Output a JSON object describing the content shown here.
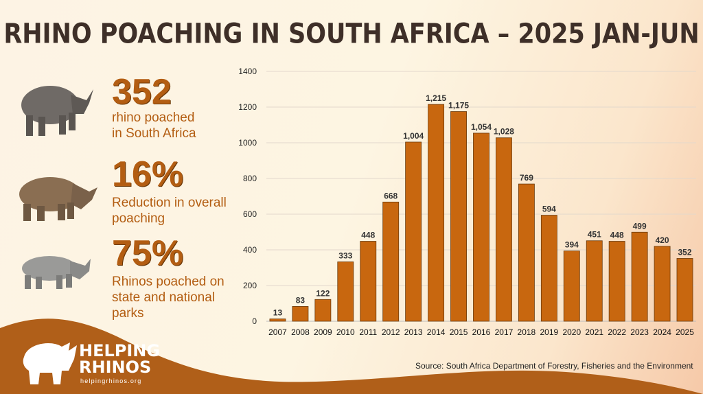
{
  "title": "RHINO POACHING IN SOUTH AFRICA – 2025 JAN-JUN",
  "stats": [
    {
      "value": "352",
      "desc_line1": "rhino poached",
      "desc_line2": "in South Africa",
      "icon": "black-rhino-icon"
    },
    {
      "value": "16%",
      "desc_line1": "Reduction in overall",
      "desc_line2": "poaching",
      "icon": "white-rhino-icon"
    },
    {
      "value": "75%",
      "desc_line1": "Rhinos poached on",
      "desc_line2": "state and national",
      "desc_line3": "parks",
      "icon": "grey-rhino-icon"
    }
  ],
  "logo": {
    "line1": "HELPING",
    "line2": "RHINOS",
    "url": "helpingrhinos.org"
  },
  "source": "Source: South Africa Department of Forestry, Fisheries and the Environment",
  "colors": {
    "bar": "#c8670f",
    "bar_outline": "#6a3a0c",
    "title": "#3e2f28",
    "accent": "#b35d12",
    "wave": "#b05f19"
  },
  "chart_data": {
    "type": "bar",
    "title": "",
    "xlabel": "",
    "ylabel": "",
    "ylim": [
      0,
      1400
    ],
    "yticks": [
      0,
      200,
      400,
      600,
      800,
      1000,
      1200,
      1400
    ],
    "grid": true,
    "categories": [
      "2007",
      "2008",
      "2009",
      "2010",
      "2011",
      "2012",
      "2013",
      "2014",
      "2015",
      "2016",
      "2017",
      "2018",
      "2019",
      "2020",
      "2021",
      "2022",
      "2023",
      "2024",
      "2025"
    ],
    "values": [
      13,
      83,
      122,
      333,
      448,
      668,
      1004,
      1215,
      1175,
      1054,
      1028,
      769,
      594,
      394,
      451,
      448,
      499,
      420,
      352
    ],
    "labels": [
      "13",
      "83",
      "122",
      "333",
      "448",
      "668",
      "1,004",
      "1,215",
      "1,175",
      "1,054",
      "1,028",
      "769",
      "594",
      "394",
      "451",
      "448",
      "499",
      "420",
      "352"
    ]
  }
}
